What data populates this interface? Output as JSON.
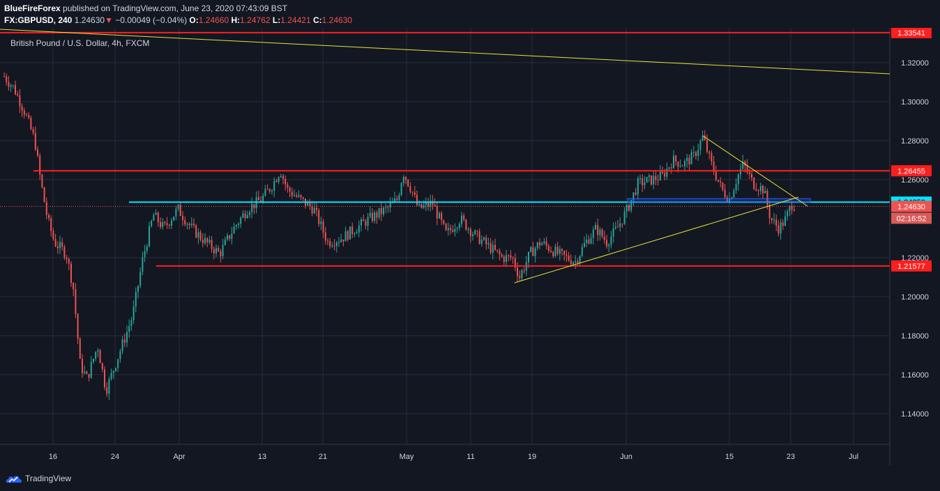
{
  "header": {
    "publisher": "BlueFireForex",
    "published_text": " published on TradingView.com, June 23, 2020 07:43:09 BST",
    "symbol": "FX:GBPUSD, 240",
    "last": "1.24630",
    "change_arrow": "▼",
    "change": "−0.00049 (−0.04%)",
    "o_label": "O:",
    "o_value": "1.24660",
    "h_label": "H:",
    "h_value": "1.24762",
    "l_label": "L:",
    "l_value": "1.24421",
    "c_label": "C:",
    "c_value": "1.24630"
  },
  "chart_title": "British Pound / U.S. Dollar, 4h, FXCM",
  "colors": {
    "background": "#131722",
    "grid": "#2a2e39",
    "up": "#26a69a",
    "down": "#ef5350",
    "resistance": "#ff1e1e",
    "cyan_line": "#00e5ff",
    "trend": "#e8e337"
  },
  "y_axis": {
    "ticks": [
      "1.32000",
      "1.30000",
      "1.28000",
      "1.26000",
      "1.22000",
      "1.20000",
      "1.18000",
      "1.16000",
      "1.14000"
    ],
    "tick_values": [
      1.32,
      1.3,
      1.28,
      1.26,
      1.22,
      1.2,
      1.18,
      1.16,
      1.14
    ]
  },
  "x_axis": {
    "ticks": [
      "16",
      "24",
      "Apr",
      "13",
      "21",
      "May",
      "11",
      "19",
      "Jun",
      "15",
      "23",
      "Jul"
    ]
  },
  "levels": [
    {
      "label": "1.33541",
      "value": 1.33541,
      "kind": "resistance"
    },
    {
      "label": "1.26455",
      "value": 1.26455,
      "kind": "resistance"
    },
    {
      "label": "1.24850",
      "value": 1.2485,
      "kind": "cyan"
    },
    {
      "label": "1.21577",
      "value": 1.21577,
      "kind": "resistance"
    }
  ],
  "current_price": {
    "label": "1.24630",
    "value": 1.2463
  },
  "countdown": "02:16:52",
  "chart_data": {
    "type": "candlestick",
    "instrument": "FX:GBPUSD",
    "timeframe": "4h",
    "ylim": [
      1.125,
      1.342
    ],
    "approx_closes": [
      {
        "date": "Mar 10",
        "close": 1.31
      },
      {
        "date": "Mar 13",
        "close": 1.275
      },
      {
        "date": "Mar 16",
        "close": 1.235
      },
      {
        "date": "Mar 19",
        "close": 1.17
      },
      {
        "date": "Mar 20",
        "close": 1.16
      },
      {
        "date": "Mar 23",
        "close": 1.15
      },
      {
        "date": "Mar 24",
        "close": 1.165
      },
      {
        "date": "Mar 27",
        "close": 1.235
      },
      {
        "date": "Mar 31",
        "close": 1.24
      },
      {
        "date": "Apr 7",
        "close": 1.23
      },
      {
        "date": "Apr 14",
        "close": 1.26
      },
      {
        "date": "Apr 21",
        "close": 1.232
      },
      {
        "date": "Apr 30",
        "close": 1.26
      },
      {
        "date": "May 7",
        "close": 1.235
      },
      {
        "date": "May 15",
        "close": 1.215
      },
      {
        "date": "May 19",
        "close": 1.225
      },
      {
        "date": "May 22",
        "close": 1.218
      },
      {
        "date": "May 29",
        "close": 1.235
      },
      {
        "date": "Jun 1",
        "close": 1.25
      },
      {
        "date": "Jun 5",
        "close": 1.266
      },
      {
        "date": "Jun 10",
        "close": 1.275
      },
      {
        "date": "Jun 12",
        "close": 1.255
      },
      {
        "date": "Jun 16",
        "close": 1.265
      },
      {
        "date": "Jun 19",
        "close": 1.24
      },
      {
        "date": "Jun 23",
        "close": 1.2463
      }
    ]
  },
  "footer": {
    "brand": "TradingView"
  }
}
